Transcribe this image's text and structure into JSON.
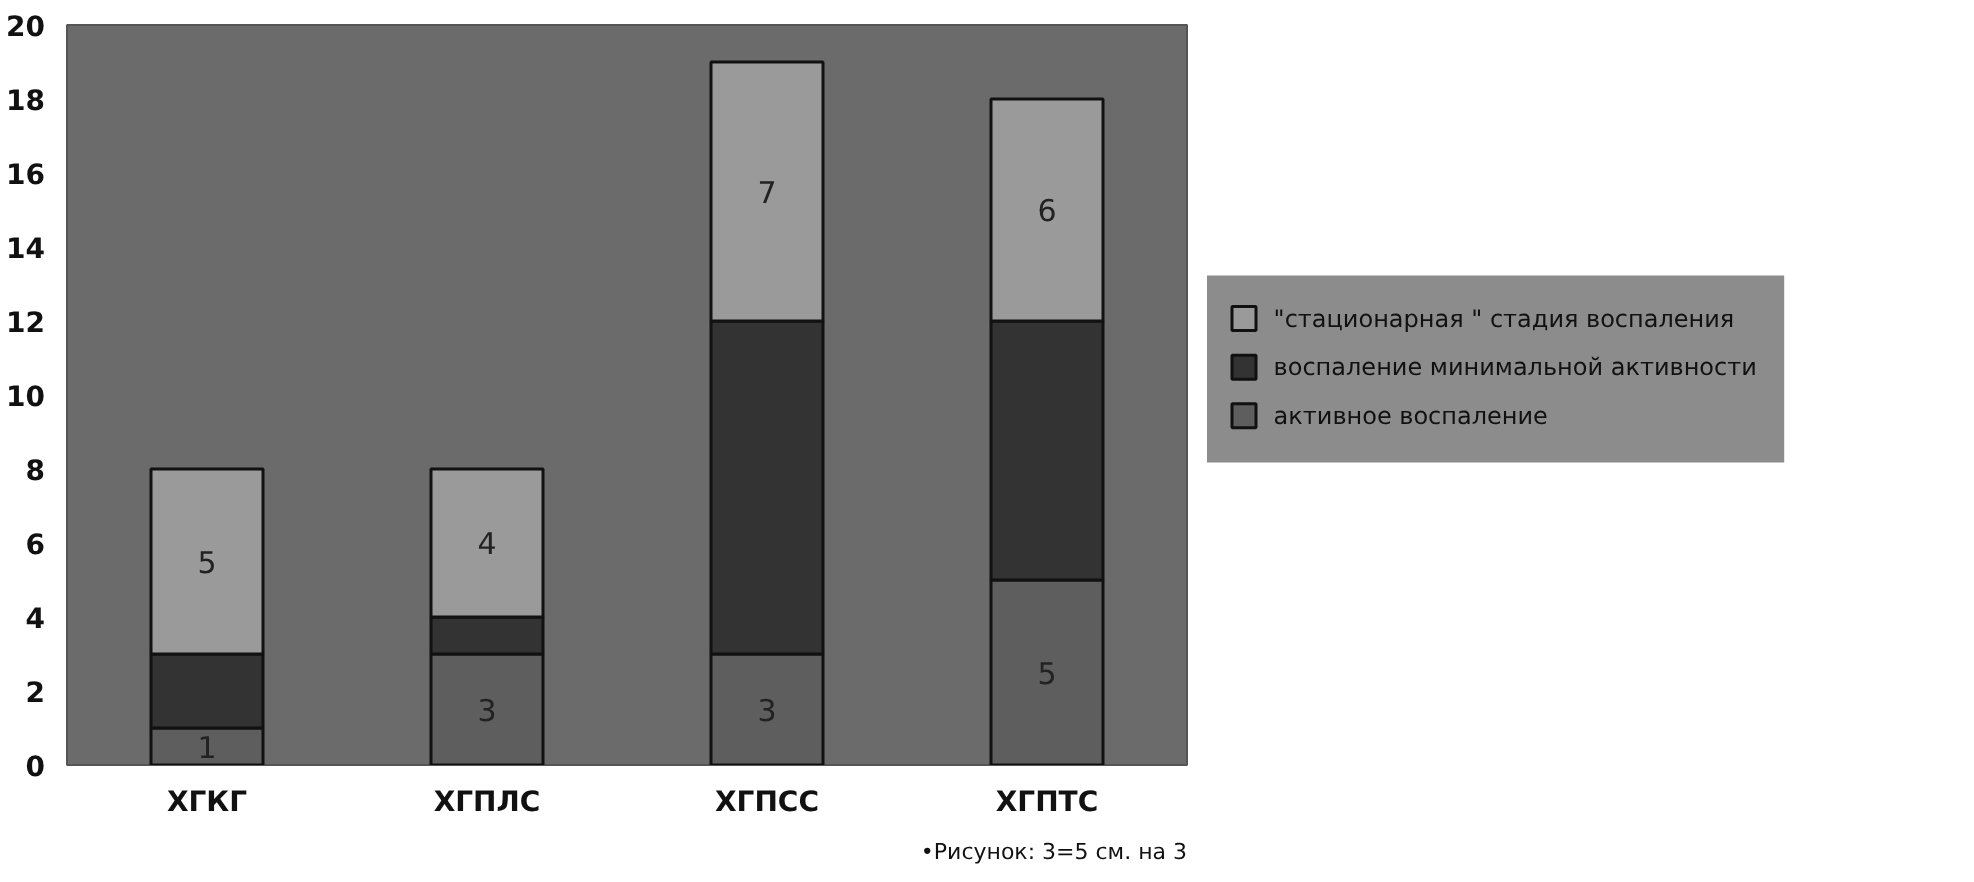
{
  "chart_data": {
    "type": "bar",
    "stacked": true,
    "categories": [
      "ХГКГ",
      "ХГПЛС",
      "ХГПСС",
      "ХГПТС"
    ],
    "series": [
      {
        "name": "активное воспаление",
        "color": "#5e5e5e",
        "values": [
          1,
          3,
          3,
          5
        ],
        "value_labels": [
          "1",
          "3",
          "3",
          "5"
        ]
      },
      {
        "name": "воспаление минимальной активности",
        "color": "#333333",
        "values": [
          2,
          1,
          9,
          7
        ],
        "value_labels": [
          null,
          null,
          null,
          null
        ]
      },
      {
        "name": "\"стационарная \" стадия воспаления",
        "color": "#9a9a9a",
        "values": [
          5,
          4,
          7,
          6
        ],
        "value_labels": [
          "5",
          "4",
          "7",
          "6"
        ]
      }
    ],
    "ylim": [
      0,
      20
    ],
    "yticks": [
      0,
      2,
      4,
      6,
      8,
      10,
      12,
      14,
      16,
      18,
      20
    ],
    "grid": false,
    "legend": "right",
    "annotations": [
      "•Рисунок: 3=5 см. на 3"
    ]
  }
}
